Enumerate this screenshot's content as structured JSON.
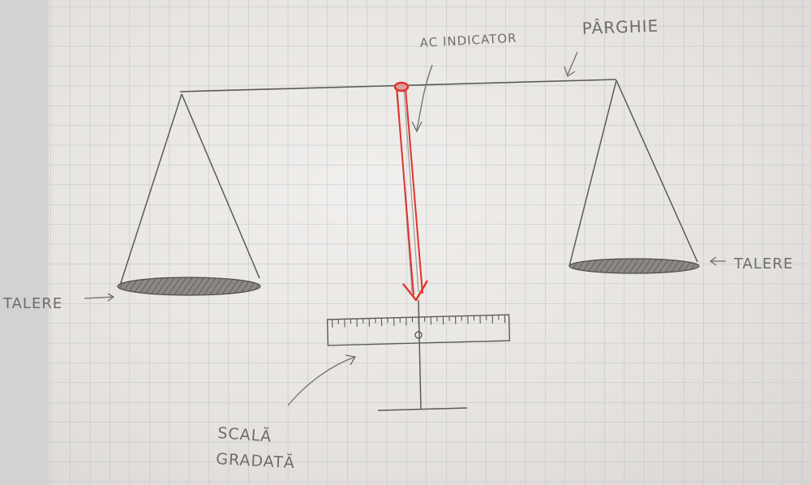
{
  "labels": {
    "needle": "AC INDICATOR",
    "lever": "PÂRGHIE",
    "pan_left": "TALERE",
    "pan_right": "TALERE",
    "scale_line1": "SCALĂ",
    "scale_line2": "GRADATĂ"
  },
  "colors": {
    "pencil": "#5c5a58",
    "needle": "#e2332b",
    "grid": "#b8c2c8",
    "paper": "#ecebe8"
  }
}
